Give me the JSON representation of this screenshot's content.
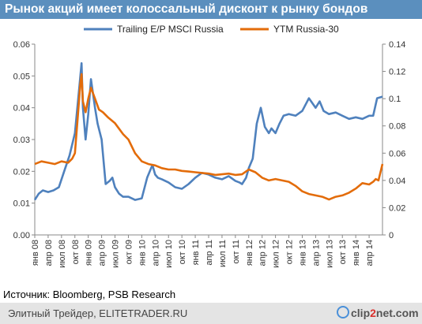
{
  "title": "Рынок акций имеет колоссальный дисконт к рынку бондов",
  "source": "Источник: Bloomberg, PSB Research",
  "footer": {
    "text": "Элитный Трейдер, ELITETRADER.RU",
    "logo_prefix": "clip",
    "logo_num": "2",
    "logo_suffix": "net.com"
  },
  "chart_data": {
    "type": "line",
    "legend_placement": "top",
    "grid": false,
    "x_ticks": [
      "янв 08",
      "апр 08",
      "июл 08",
      "окт 08",
      "янв 09",
      "апр 09",
      "июл 09",
      "окт 09",
      "янв 10",
      "апр 10",
      "июл 10",
      "окт 10",
      "янв 11",
      "апр 11",
      "июл 11",
      "окт 11",
      "янв 12",
      "апр 12",
      "июл 12",
      "окт 12",
      "янв 13",
      "апр 13",
      "июл 13",
      "окт 13",
      "янв 14",
      "апр 14"
    ],
    "x_range": [
      0,
      26
    ],
    "y_left": {
      "range": [
        0,
        0.06
      ],
      "ticks": [
        "0.00",
        "0.01",
        "0.02",
        "0.03",
        "0.04",
        "0.05",
        "0.06"
      ]
    },
    "y_right": {
      "range": [
        0,
        0.14
      ],
      "ticks": [
        "0",
        "0.02",
        "0.04",
        "0.06",
        "0.08",
        "0.1",
        "0.12",
        "0.14"
      ]
    },
    "series": [
      {
        "name": "Trailing E/P MSCI Russia",
        "axis": "left",
        "color": "#4f81bd",
        "x": [
          0,
          0.3,
          0.6,
          1,
          1.4,
          1.8,
          2.2,
          2.6,
          3,
          3.3,
          3.5,
          3.6,
          3.8,
          4,
          4.2,
          4.5,
          4.7,
          5,
          5.3,
          5.6,
          5.8,
          6,
          6.3,
          6.6,
          7,
          7.5,
          8,
          8.4,
          8.8,
          9,
          9.2,
          9.5,
          10,
          10.5,
          11,
          11.5,
          12,
          12.5,
          13,
          13.5,
          14,
          14.5,
          15,
          15.3,
          15.5,
          15.8,
          16,
          16.3,
          16.6,
          16.9,
          17.2,
          17.5,
          17.7,
          18,
          18.3,
          18.6,
          19,
          19.5,
          20,
          20.5,
          21,
          21.3,
          21.6,
          22,
          22.5,
          23,
          23.5,
          24,
          24.5,
          25,
          25.3,
          25.6,
          26
        ],
        "y": [
          0.011,
          0.013,
          0.014,
          0.0135,
          0.014,
          0.015,
          0.02,
          0.025,
          0.032,
          0.045,
          0.054,
          0.04,
          0.03,
          0.038,
          0.049,
          0.04,
          0.035,
          0.03,
          0.016,
          0.017,
          0.018,
          0.015,
          0.013,
          0.012,
          0.012,
          0.011,
          0.0115,
          0.018,
          0.022,
          0.019,
          0.018,
          0.0175,
          0.0165,
          0.015,
          0.0145,
          0.016,
          0.018,
          0.0195,
          0.019,
          0.018,
          0.0175,
          0.0185,
          0.017,
          0.0165,
          0.016,
          0.018,
          0.021,
          0.024,
          0.035,
          0.04,
          0.034,
          0.032,
          0.0335,
          0.032,
          0.035,
          0.0375,
          0.038,
          0.0375,
          0.039,
          0.043,
          0.04,
          0.042,
          0.039,
          0.038,
          0.0385,
          0.0375,
          0.0365,
          0.037,
          0.0365,
          0.0375,
          0.0375,
          0.043,
          0.0435
        ]
      },
      {
        "name": "YTM Russia-30",
        "axis": "right",
        "color": "#e36c0a",
        "x": [
          0,
          0.5,
          1,
          1.5,
          2,
          2.5,
          2.8,
          3,
          3.2,
          3.4,
          3.5,
          3.6,
          3.8,
          4,
          4.2,
          4.5,
          4.8,
          5.1,
          5.5,
          6,
          6.3,
          6.6,
          7,
          7.5,
          8,
          8.5,
          9,
          9.5,
          10,
          10.5,
          11,
          11.5,
          12,
          12.5,
          13,
          13.5,
          14,
          14.5,
          15,
          15.5,
          16,
          16.5,
          17,
          17.5,
          18,
          18.5,
          19,
          19.5,
          20,
          20.5,
          21,
          21.5,
          22,
          22.5,
          23,
          23.5,
          24,
          24.5,
          25,
          25.3,
          25.5,
          25.7,
          26
        ],
        "y": [
          0.052,
          0.054,
          0.053,
          0.052,
          0.054,
          0.053,
          0.056,
          0.06,
          0.085,
          0.11,
          0.118,
          0.098,
          0.09,
          0.1,
          0.108,
          0.1,
          0.092,
          0.09,
          0.086,
          0.082,
          0.078,
          0.074,
          0.07,
          0.06,
          0.054,
          0.052,
          0.051,
          0.049,
          0.048,
          0.048,
          0.047,
          0.0465,
          0.046,
          0.0455,
          0.045,
          0.044,
          0.0445,
          0.045,
          0.044,
          0.0445,
          0.048,
          0.046,
          0.042,
          0.04,
          0.041,
          0.04,
          0.039,
          0.036,
          0.032,
          0.03,
          0.029,
          0.028,
          0.026,
          0.028,
          0.029,
          0.031,
          0.034,
          0.038,
          0.037,
          0.039,
          0.041,
          0.04,
          0.052
        ]
      }
    ]
  }
}
